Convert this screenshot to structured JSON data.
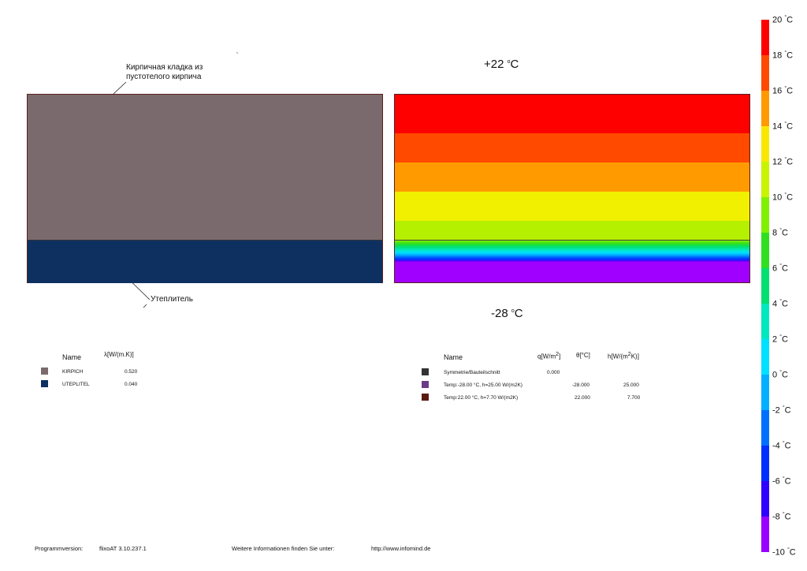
{
  "annotations": {
    "brick_label_line1": "Кирпичная кладка из",
    "brick_label_line2": "пустотелого кирпича",
    "insulation_label": "Утеплитель"
  },
  "temperatures": {
    "inside_value": "+22",
    "inside_unit": "C",
    "outside_value": "-28",
    "outside_unit": "C",
    "degree_mark": "o"
  },
  "wall": {
    "layers": [
      {
        "name": "KIRPICH",
        "color": "#7a6a6d",
        "thickness_fraction": 0.77
      },
      {
        "name": "UTEPLITEL",
        "color": "#0d3060",
        "thickness_fraction": 0.23
      }
    ]
  },
  "materials_table": {
    "col_name": "Name",
    "col_lambda": "λ[W/(m.K)]",
    "rows": [
      {
        "name": "KIRPICH",
        "lambda": "0.520",
        "color": "#7a6a6d"
      },
      {
        "name": "UTEPLITEL",
        "lambda": "0.040",
        "color": "#0d3060"
      }
    ]
  },
  "boundary_table": {
    "col_name": "Name",
    "col_q": "q[W/m",
    "col_q_sup": "2",
    "col_q_end": "]",
    "col_theta": "θ[°C]",
    "col_h": "h[W/(m",
    "col_h_sup": "2",
    "col_h_end": "K)]",
    "rows": [
      {
        "name": "Symmetrie/Bauteilschnitt",
        "q": "0.000",
        "theta": "",
        "h": "",
        "color": "#333333"
      },
      {
        "name": "Temp:-28.00 °C, h=25.00 W/(m2K)",
        "q": "",
        "theta": "-28.000",
        "h": "25.000",
        "color": "#6a3a86"
      },
      {
        "name": "Temp:22.00 °C, h=7.70 W/(m2K)",
        "q": "",
        "theta": "22.000",
        "h": "7.700",
        "color": "#5a1a10"
      }
    ]
  },
  "color_scale": {
    "unit": "C",
    "degree_mark": "°",
    "labels": [
      "20",
      "18",
      "16",
      "14",
      "12",
      "10",
      "8",
      "6",
      "4",
      "2",
      "0",
      "-2",
      "-4",
      "-6",
      "-8",
      "-10"
    ],
    "colors": [
      "#ff0000",
      "#ff4a00",
      "#ff8a00",
      "#ffb800",
      "#f4f400",
      "#c8f400",
      "#80f000",
      "#30e020",
      "#00e070",
      "#00e8c0",
      "#00e0ff",
      "#00b0ff",
      "#0070ff",
      "#0030ff",
      "#3000ff",
      "#7a00ff",
      "#9a00ff",
      "#a800ff"
    ]
  },
  "thermal": {
    "bands": [
      {
        "color": "#ff0000",
        "h": 49
      },
      {
        "color": "#ff4a00",
        "h": 37
      },
      {
        "color": "#ff9b00",
        "h": 37
      },
      {
        "color": "#f0f000",
        "h": 37
      },
      {
        "color": "#b4f000",
        "h": 24
      }
    ]
  },
  "footer": {
    "program_label": "Programmversion:",
    "program_version": "flixoAT 3.10.237.1",
    "info_label": "Weitere Informationen finden Sie unter:",
    "info_url": "http://www.infomind.de"
  }
}
